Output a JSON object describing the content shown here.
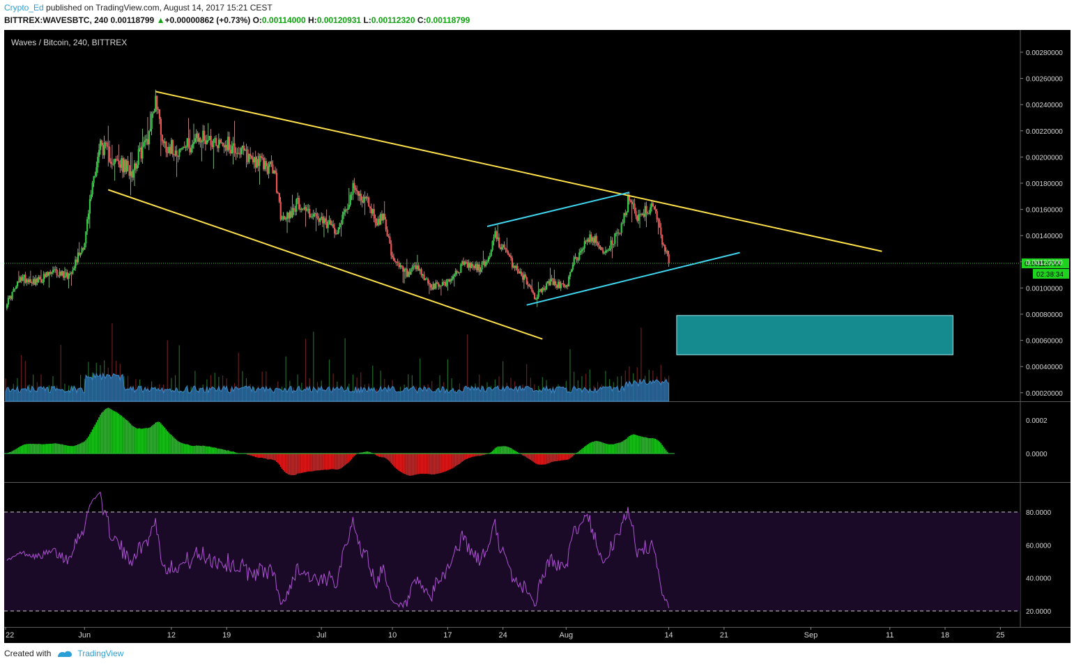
{
  "header": {
    "user": "Crypto_Ed",
    "published": "published on TradingView.com, August 14, 2017 15:21 CEST",
    "symbol": "BITTREX:WAVESBTC, 240",
    "last": "0.00118799",
    "up_arrow": "▲",
    "change": "+0.00000862 (+0.73%)",
    "o_label": "O:",
    "o_value": "0.00114000",
    "h_label": "H:",
    "h_value": "0.00120931",
    "l_label": "L:",
    "l_value": "0.00112320",
    "c_label": "C:",
    "c_value": "0.00118799"
  },
  "chart_data": {
    "type": "candlestick",
    "title": "Waves / Bitcoin, 240, BITTREX",
    "price_axis": {
      "ticks": [
        0.0028,
        0.0026,
        0.0024,
        0.0022,
        0.002,
        0.0018,
        0.0016,
        0.0014,
        0.0012,
        0.001,
        0.0008,
        0.0006,
        0.0004,
        0.0002
      ],
      "labels": [
        "0.00280000",
        "0.00260000",
        "0.00240000",
        "0.00220000",
        "0.00200000",
        "0.00180000",
        "0.00160000",
        "0.00140000",
        "0.00120000",
        "0.00100000",
        "0.00080000",
        "0.00060000",
        "0.00040000",
        "0.00020000"
      ],
      "range": [
        0.000135,
        0.00297
      ],
      "last_price_label": "0.00118799",
      "last_price": 0.00118799,
      "countdown": "02:38:34"
    },
    "date_axis": {
      "labels": [
        "22",
        "Jun",
        "12",
        "19",
        "Jul",
        "10",
        "17",
        "24",
        "Aug",
        "14",
        "21",
        "Sep",
        "11",
        "18",
        "25"
      ],
      "dates": [
        "2017-05-22",
        "2017-06-01",
        "2017-06-12",
        "2017-06-19",
        "2017-07-01",
        "2017-07-10",
        "2017-07-17",
        "2017-07-24",
        "2017-08-01",
        "2017-08-14",
        "2017-08-21",
        "2017-09-01",
        "2017-09-11",
        "2017-09-18",
        "2017-09-25"
      ],
      "range": [
        "2017-05-22",
        "2017-09-27"
      ]
    },
    "price_path": [
      [
        "2017-05-22",
        0.00087
      ],
      [
        "2017-05-24",
        0.00108
      ],
      [
        "2017-05-26",
        0.00105
      ],
      [
        "2017-05-28",
        0.00112
      ],
      [
        "2017-05-30",
        0.0011
      ],
      [
        "2017-06-01",
        0.00135
      ],
      [
        "2017-06-02",
        0.0018
      ],
      [
        "2017-06-03",
        0.0021
      ],
      [
        "2017-06-05",
        0.00195
      ],
      [
        "2017-06-07",
        0.0019
      ],
      [
        "2017-06-09",
        0.00215
      ],
      [
        "2017-06-10",
        0.00245
      ],
      [
        "2017-06-11",
        0.0021
      ],
      [
        "2017-06-13",
        0.00205
      ],
      [
        "2017-06-16",
        0.00215
      ],
      [
        "2017-06-19",
        0.0021
      ],
      [
        "2017-06-22",
        0.002
      ],
      [
        "2017-06-25",
        0.0019
      ],
      [
        "2017-06-26",
        0.0015
      ],
      [
        "2017-06-28",
        0.00165
      ],
      [
        "2017-07-01",
        0.0015
      ],
      [
        "2017-07-03",
        0.00145
      ],
      [
        "2017-07-05",
        0.00175
      ],
      [
        "2017-07-07",
        0.00165
      ],
      [
        "2017-07-08",
        0.0015
      ],
      [
        "2017-07-09",
        0.00155
      ],
      [
        "2017-07-10",
        0.0012
      ],
      [
        "2017-07-12",
        0.0011
      ],
      [
        "2017-07-13",
        0.00115
      ],
      [
        "2017-07-15",
        0.001
      ],
      [
        "2017-07-17",
        0.00105
      ],
      [
        "2017-07-19",
        0.00118
      ],
      [
        "2017-07-21",
        0.00115
      ],
      [
        "2017-07-22",
        0.0012
      ],
      [
        "2017-07-23",
        0.0014
      ],
      [
        "2017-07-25",
        0.0012
      ],
      [
        "2017-07-27",
        0.00105
      ],
      [
        "2017-07-28",
        0.00093
      ],
      [
        "2017-07-30",
        0.00105
      ],
      [
        "2017-08-01",
        0.001
      ],
      [
        "2017-08-02",
        0.0012
      ],
      [
        "2017-08-04",
        0.0014
      ],
      [
        "2017-08-06",
        0.00128
      ],
      [
        "2017-08-08",
        0.00145
      ],
      [
        "2017-08-09",
        0.0017
      ],
      [
        "2017-08-10",
        0.00155
      ],
      [
        "2017-08-12",
        0.00163
      ],
      [
        "2017-08-13",
        0.0014
      ],
      [
        "2017-08-14",
        0.00118799
      ]
    ],
    "series": [
      {
        "name": "Volume"
      },
      {
        "name": "Histogram",
        "ticks": [
          0.0002,
          0.0
        ],
        "labels": [
          "0.0002",
          "0.0000"
        ]
      },
      {
        "name": "RSI",
        "ticks": [
          80,
          60,
          40,
          20
        ],
        "labels": [
          "80.0000",
          "60.0000",
          "40.0000",
          "20.0000"
        ],
        "overbought": 80,
        "oversold": 20
      }
    ],
    "trendlines": [
      {
        "name": "upper-channel",
        "color": "#ffe14a",
        "from": [
          "2017-06-10",
          0.0025
        ],
        "to": [
          "2017-09-10",
          0.00128
        ]
      },
      {
        "name": "lower-channel",
        "color": "#ffe14a",
        "from": [
          "2017-06-04",
          0.00175
        ],
        "to": [
          "2017-07-29",
          0.00061
        ]
      },
      {
        "name": "rising-upper",
        "color": "#3fd6f0",
        "from": [
          "2017-07-22",
          0.00147
        ],
        "to": [
          "2017-08-09",
          0.00173
        ]
      },
      {
        "name": "rising-lower",
        "color": "#3fd6f0",
        "from": [
          "2017-07-27",
          0.00087
        ],
        "to": [
          "2017-08-23",
          0.00127
        ]
      }
    ],
    "target_zone": {
      "color": "#1aa3a8",
      "from_date": "2017-08-15",
      "to_date": "2017-09-19",
      "low": 0.00049,
      "high": 0.00079
    },
    "colors": {
      "up": "#2ecc40",
      "down": "#ef5350",
      "volume": "#2a6fa8",
      "hist_up": "#1ec81e",
      "hist_down": "#e02020",
      "rsi": "#b052d6",
      "rsi_band": "#1a0a28",
      "last_price": "#33cc33"
    }
  },
  "footer": {
    "created_with": "Created with",
    "brand": "TradingView"
  }
}
